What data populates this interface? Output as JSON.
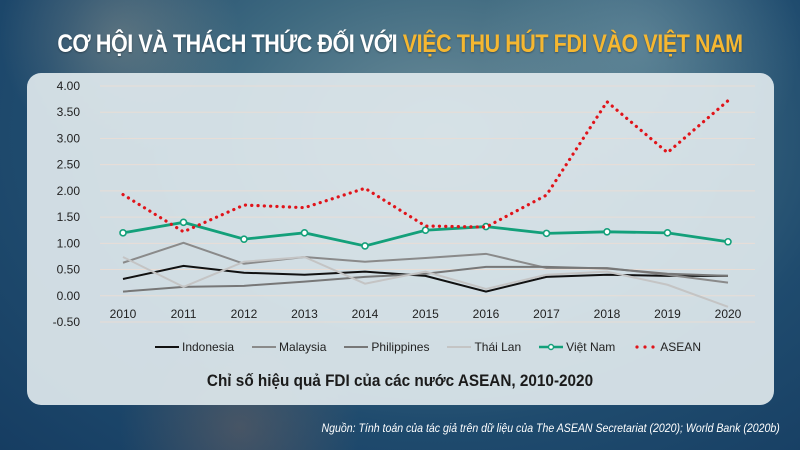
{
  "header": {
    "title_part1": "CƠ HỘI VÀ THÁCH THỨC ĐỐI VỚI ",
    "title_part2": "VIỆC THU HÚT FDI VÀO VIỆT NAM",
    "accent_color": "#f5b731"
  },
  "chart_data": {
    "type": "line",
    "title": "Chỉ số hiệu quả FDI của các nước ASEAN, 2010-2020",
    "xlabel": "",
    "ylabel": "",
    "x": [
      "2010",
      "2011",
      "2012",
      "2013",
      "2014",
      "2015",
      "2016",
      "2017",
      "2018",
      "2019",
      "2020"
    ],
    "ylim": [
      -0.5,
      4.0
    ],
    "yticks": [
      "4.00",
      "3.50",
      "3.00",
      "2.50",
      "2.00",
      "1.50",
      "1.00",
      "0.50",
      "0.00",
      "-0.50"
    ],
    "grid": true,
    "legend_position": "bottom",
    "series": [
      {
        "name": "Indonesia",
        "color": "#111111",
        "style": "solid",
        "values": [
          0.32,
          0.57,
          0.44,
          0.4,
          0.46,
          0.38,
          0.08,
          0.36,
          0.4,
          0.38,
          0.38
        ]
      },
      {
        "name": "Malaysia",
        "color": "#8a8a8a",
        "style": "solid",
        "values": [
          0.63,
          1.01,
          0.61,
          0.74,
          0.65,
          0.72,
          0.8,
          0.53,
          0.53,
          0.4,
          0.25
        ]
      },
      {
        "name": "Philippines",
        "color": "#777777",
        "style": "solid",
        "values": [
          0.08,
          0.17,
          0.19,
          0.27,
          0.36,
          0.42,
          0.55,
          0.55,
          0.52,
          0.42,
          0.38
        ]
      },
      {
        "name": "Thái Lan",
        "color": "#c4c4c4",
        "style": "solid",
        "values": [
          0.74,
          0.17,
          0.65,
          0.74,
          0.23,
          0.46,
          0.13,
          0.4,
          0.46,
          0.21,
          -0.21
        ]
      },
      {
        "name": "Việt Nam",
        "color": "#13a07a",
        "style": "solid-marker",
        "values": [
          1.2,
          1.4,
          1.08,
          1.2,
          0.95,
          1.25,
          1.32,
          1.19,
          1.22,
          1.2,
          1.03
        ]
      },
      {
        "name": "ASEAN",
        "color": "#e0141a",
        "style": "dotted",
        "values": [
          1.93,
          1.22,
          1.73,
          1.68,
          2.05,
          1.33,
          1.31,
          1.92,
          3.7,
          2.73,
          3.72
        ]
      }
    ]
  },
  "source": "Nguồn: Tính toán của tác giả trên dữ liệu của The ASEAN Secretariat (2020); World Bank (2020b)"
}
